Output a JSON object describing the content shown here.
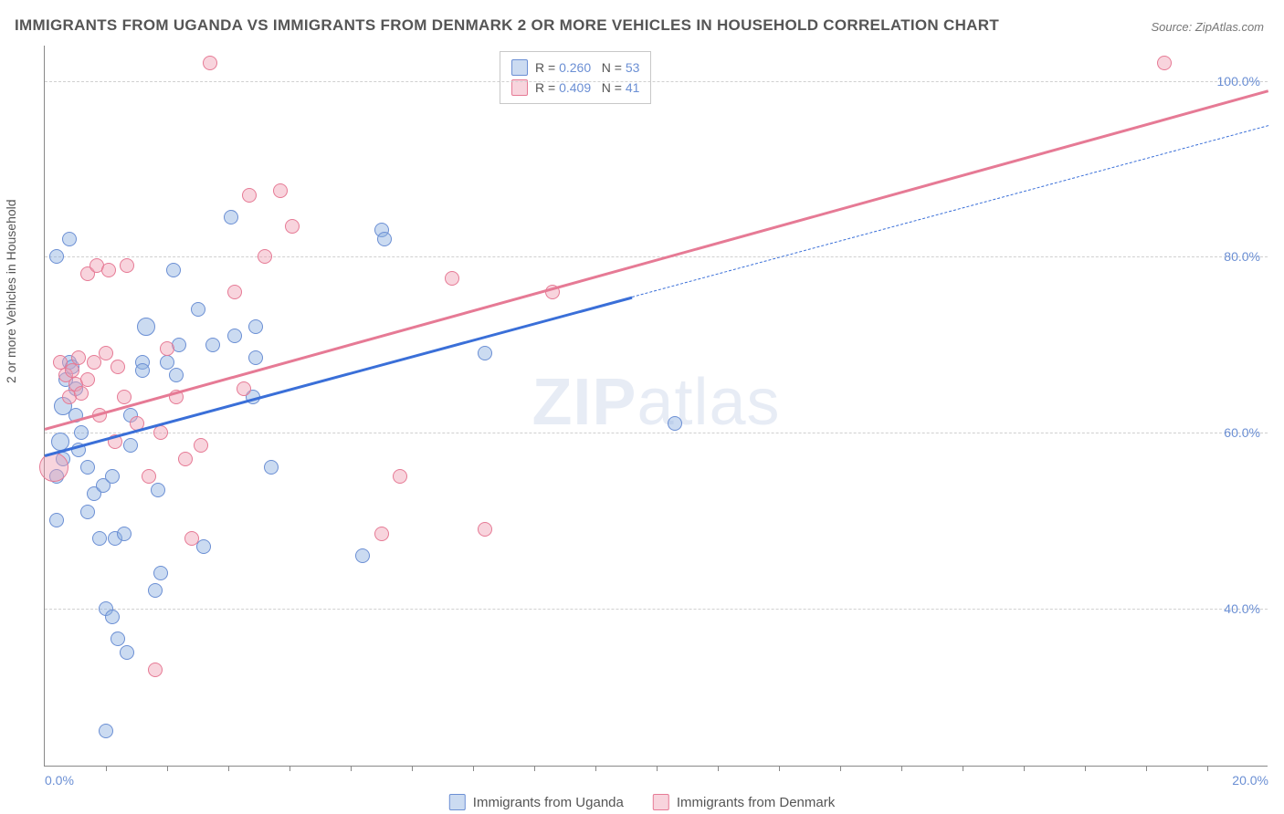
{
  "title": "IMMIGRANTS FROM UGANDA VS IMMIGRANTS FROM DENMARK 2 OR MORE VEHICLES IN HOUSEHOLD CORRELATION CHART",
  "source": "Source: ZipAtlas.com",
  "ylabel": "2 or more Vehicles in Household",
  "watermark": "ZIPatlas",
  "chart": {
    "type": "scatter",
    "xlim": [
      0,
      20
    ],
    "ylim": [
      22,
      104
    ],
    "xtick_labels": [
      "0.0%",
      "20.0%"
    ],
    "xtick_positions": [
      0,
      20
    ],
    "xtick_minor": [
      1,
      2,
      3,
      4,
      5,
      6,
      7,
      8,
      9,
      10,
      11,
      12,
      13,
      14,
      15,
      16,
      17,
      18,
      19
    ],
    "ytick_labels": [
      "40.0%",
      "60.0%",
      "80.0%",
      "100.0%"
    ],
    "ytick_positions": [
      40,
      60,
      80,
      100
    ],
    "grid_color": "#d0d0d0",
    "background_color": "#ffffff",
    "series": [
      {
        "name": "Immigrants from Uganda",
        "fill": "rgba(140,175,225,0.45)",
        "stroke": "#6b8fd4",
        "r_default": 8,
        "points": [
          [
            0.4,
            82,
            8
          ],
          [
            0.2,
            80,
            8
          ],
          [
            0.3,
            63,
            10
          ],
          [
            0.25,
            59,
            10
          ],
          [
            0.3,
            57,
            8
          ],
          [
            0.2,
            55,
            8
          ],
          [
            0.2,
            50,
            8
          ],
          [
            0.35,
            66,
            8
          ],
          [
            0.4,
            68,
            8
          ],
          [
            0.45,
            67.5,
            8
          ],
          [
            0.5,
            65,
            8
          ],
          [
            0.5,
            62,
            8
          ],
          [
            0.6,
            60,
            8
          ],
          [
            0.55,
            58,
            8
          ],
          [
            0.7,
            56,
            8
          ],
          [
            0.7,
            51,
            8
          ],
          [
            0.8,
            53,
            8
          ],
          [
            0.95,
            54,
            8
          ],
          [
            0.9,
            48,
            8
          ],
          [
            1.0,
            40,
            8
          ],
          [
            1.1,
            39,
            8
          ],
          [
            1.2,
            36.5,
            8
          ],
          [
            1.35,
            35,
            8
          ],
          [
            1.1,
            55,
            8
          ],
          [
            1.15,
            48,
            8
          ],
          [
            1.3,
            48.5,
            8
          ],
          [
            1.4,
            58.5,
            8
          ],
          [
            1.4,
            62,
            8
          ],
          [
            1.6,
            68,
            8
          ],
          [
            1.6,
            67,
            8
          ],
          [
            1.65,
            72,
            10
          ],
          [
            1.8,
            42,
            8
          ],
          [
            1.85,
            53.5,
            8
          ],
          [
            1.9,
            44,
            8
          ],
          [
            2.0,
            68,
            8
          ],
          [
            2.15,
            66.5,
            8
          ],
          [
            2.1,
            78.5,
            8
          ],
          [
            2.2,
            70,
            8
          ],
          [
            2.5,
            74,
            8
          ],
          [
            2.6,
            47,
            8
          ],
          [
            2.75,
            70,
            8
          ],
          [
            3.05,
            84.5,
            8
          ],
          [
            3.1,
            71,
            8
          ],
          [
            3.4,
            64,
            8
          ],
          [
            3.45,
            72,
            8
          ],
          [
            3.45,
            68.5,
            8
          ],
          [
            3.7,
            56,
            8
          ],
          [
            5.2,
            46,
            8
          ],
          [
            5.5,
            83,
            8
          ],
          [
            5.55,
            82,
            8
          ],
          [
            7.2,
            69,
            8
          ],
          [
            10.3,
            61,
            8
          ],
          [
            1.0,
            26,
            8
          ]
        ],
        "trend": {
          "x1": 0,
          "y1": 57.5,
          "x2": 9.6,
          "y2": 75.5,
          "color": "#3a6fd8",
          "width": 2.5,
          "dash_x1": 9.6,
          "dash_y1": 75.5,
          "dash_x2": 20,
          "dash_y2": 95
        }
      },
      {
        "name": "Immigrants from Denmark",
        "fill": "rgba(240,160,180,0.45)",
        "stroke": "#e67a95",
        "r_default": 8,
        "points": [
          [
            0.15,
            56,
            16
          ],
          [
            0.25,
            68,
            8
          ],
          [
            0.35,
            66.5,
            8
          ],
          [
            0.4,
            64,
            8
          ],
          [
            0.45,
            67,
            8
          ],
          [
            0.5,
            65.5,
            8
          ],
          [
            0.55,
            68.5,
            8
          ],
          [
            0.6,
            64.5,
            8
          ],
          [
            0.7,
            66,
            8
          ],
          [
            0.7,
            78,
            8
          ],
          [
            0.8,
            68,
            8
          ],
          [
            0.85,
            79,
            8
          ],
          [
            0.9,
            62,
            8
          ],
          [
            1.0,
            69,
            8
          ],
          [
            1.05,
            78.5,
            8
          ],
          [
            1.15,
            59,
            8
          ],
          [
            1.2,
            67.5,
            8
          ],
          [
            1.3,
            64,
            8
          ],
          [
            1.35,
            79,
            8
          ],
          [
            1.5,
            61,
            8
          ],
          [
            1.7,
            55,
            8
          ],
          [
            1.8,
            33,
            8
          ],
          [
            1.9,
            60,
            8
          ],
          [
            2.0,
            69.5,
            8
          ],
          [
            2.15,
            64,
            8
          ],
          [
            2.3,
            57,
            8
          ],
          [
            2.4,
            48,
            8
          ],
          [
            2.55,
            58.5,
            8
          ],
          [
            2.7,
            102,
            8
          ],
          [
            3.1,
            76,
            8
          ],
          [
            3.25,
            65,
            8
          ],
          [
            3.35,
            87,
            8
          ],
          [
            3.6,
            80,
            8
          ],
          [
            3.85,
            87.5,
            8
          ],
          [
            4.05,
            83.5,
            8
          ],
          [
            5.5,
            48.5,
            8
          ],
          [
            5.8,
            55,
            8
          ],
          [
            6.65,
            77.5,
            8
          ],
          [
            7.2,
            49,
            8
          ],
          [
            8.3,
            76,
            8
          ],
          [
            18.3,
            102,
            8
          ]
        ],
        "trend": {
          "x1": 0,
          "y1": 60.5,
          "x2": 20,
          "y2": 99,
          "color": "#e67a95",
          "width": 2.5
        }
      }
    ]
  },
  "legend_top": {
    "rows": [
      {
        "swatch_fill": "rgba(140,175,225,0.45)",
        "swatch_stroke": "#6b8fd4",
        "r_label": "R =",
        "r_val": "0.260",
        "n_label": "N =",
        "n_val": "53"
      },
      {
        "swatch_fill": "rgba(240,160,180,0.45)",
        "swatch_stroke": "#e67a95",
        "r_label": "R =",
        "r_val": "0.409",
        "n_label": "N =",
        "n_val": "41"
      }
    ]
  },
  "legend_bottom": {
    "items": [
      {
        "swatch_fill": "rgba(140,175,225,0.45)",
        "swatch_stroke": "#6b8fd4",
        "label": "Immigrants from Uganda"
      },
      {
        "swatch_fill": "rgba(240,160,180,0.45)",
        "swatch_stroke": "#e67a95",
        "label": "Immigrants from Denmark"
      }
    ]
  }
}
